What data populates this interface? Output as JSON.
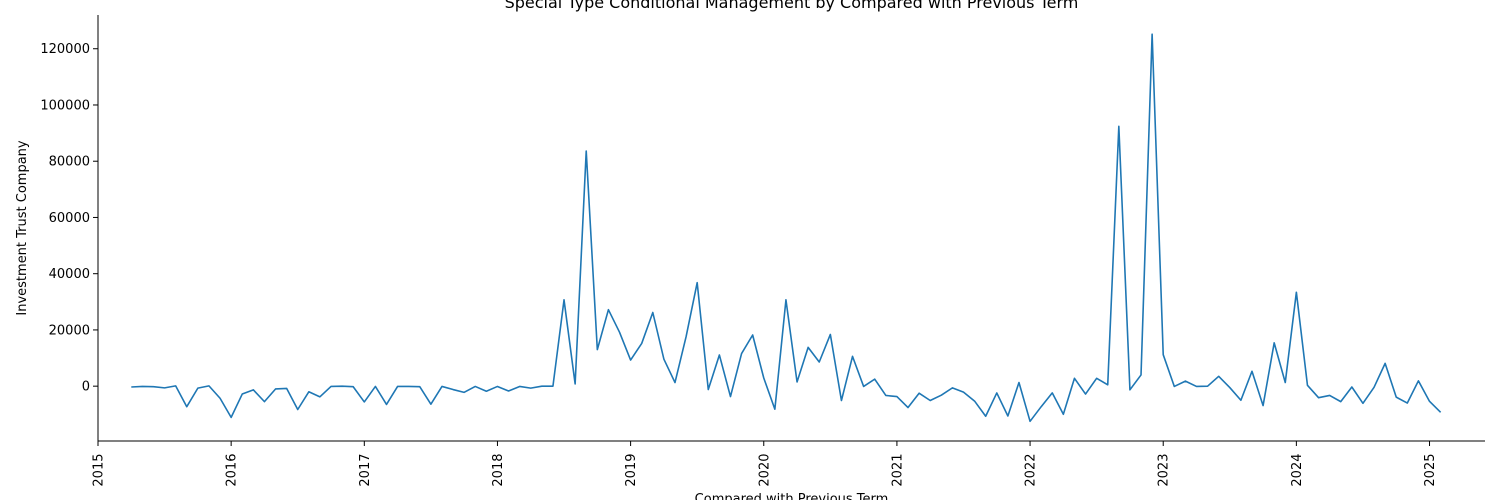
{
  "chart_data": {
    "type": "line",
    "title": "Special Type Conditional Management by Compared with Previous Term",
    "xlabel": "Compared with Previous Term",
    "ylabel": "Investment Trust Company",
    "xlim": [
      "2015-01-01",
      "2025-06-01"
    ],
    "ylim": [
      -19500,
      132000
    ],
    "x_ticks": [
      "2015",
      "2016",
      "2017",
      "2018",
      "2019",
      "2020",
      "2021",
      "2022",
      "2023",
      "2024",
      "2025"
    ],
    "y_ticks": [
      0,
      20000,
      40000,
      60000,
      80000,
      100000,
      120000
    ],
    "grid": false,
    "color": "#1f77b4",
    "series": [
      {
        "x": [
          "2015-04",
          "2015-05",
          "2015-06",
          "2015-07",
          "2015-08",
          "2015-09",
          "2015-10",
          "2015-11",
          "2015-12",
          "2016-01",
          "2016-02",
          "2016-03",
          "2016-04",
          "2016-05",
          "2016-06",
          "2016-07",
          "2016-08",
          "2016-09",
          "2016-10",
          "2016-11",
          "2016-12",
          "2017-01",
          "2017-02",
          "2017-03",
          "2017-04",
          "2017-05",
          "2017-06",
          "2017-07",
          "2017-08",
          "2017-09",
          "2017-10",
          "2017-11",
          "2017-12",
          "2018-01",
          "2018-02",
          "2018-03",
          "2018-04",
          "2018-05",
          "2018-06",
          "2018-07",
          "2018-08",
          "2018-09",
          "2018-10",
          "2018-11",
          "2018-12",
          "2019-01",
          "2019-02",
          "2019-03",
          "2019-04",
          "2019-05",
          "2019-06",
          "2019-07",
          "2019-08",
          "2019-09",
          "2019-10",
          "2019-11",
          "2019-12",
          "2020-01",
          "2020-02",
          "2020-03",
          "2020-04",
          "2020-05",
          "2020-06",
          "2020-07",
          "2020-08",
          "2020-09",
          "2020-10",
          "2020-11",
          "2020-12",
          "2021-01",
          "2021-02",
          "2021-03",
          "2021-04",
          "2021-05",
          "2021-06",
          "2021-07",
          "2021-08",
          "2021-09",
          "2021-10",
          "2021-11",
          "2021-12",
          "2022-01",
          "2022-02",
          "2022-03",
          "2022-04",
          "2022-05",
          "2022-06",
          "2022-07",
          "2022-08",
          "2022-09",
          "2022-10",
          "2022-11",
          "2022-12",
          "2023-01",
          "2023-02",
          "2023-03",
          "2023-04",
          "2023-05",
          "2023-06",
          "2023-07",
          "2023-08",
          "2023-09",
          "2023-10",
          "2023-11",
          "2023-12",
          "2024-01",
          "2024-02",
          "2024-03",
          "2024-04",
          "2024-05",
          "2024-06",
          "2024-07",
          "2024-08",
          "2024-09",
          "2024-10",
          "2024-11",
          "2024-12",
          "2025-01",
          "2025-02"
        ],
        "values": [
          -300,
          -100,
          -200,
          -600,
          100,
          -7300,
          -700,
          100,
          -4300,
          -11100,
          -2800,
          -1300,
          -5500,
          -1000,
          -800,
          -8300,
          -2000,
          -3800,
          -100,
          0,
          -200,
          -5600,
          -100,
          -6500,
          -100,
          -100,
          -200,
          -6400,
          -100,
          -1200,
          -2200,
          -100,
          -1800,
          -100,
          -1700,
          -100,
          -700,
          0,
          0,
          30700,
          800,
          83600,
          13000,
          27200,
          19200,
          9300,
          15200,
          26200,
          9600,
          1300,
          17600,
          36800,
          -1200,
          11100,
          -3700,
          11600,
          18200,
          2900,
          -8200,
          30700,
          1500,
          13800,
          8600,
          18400,
          -5100,
          10600,
          -100,
          2500,
          -3300,
          -3700,
          -7600,
          -2500,
          -5100,
          -3200,
          -600,
          -2100,
          -5300,
          -10700,
          -2400,
          -10600,
          1300,
          -12500,
          -7300,
          -2400,
          -10000,
          2800,
          -2800,
          2800,
          500,
          92400,
          -1300,
          4000,
          125200,
          11200,
          -100,
          1800,
          -100,
          0,
          3500,
          -500,
          -5000,
          5300,
          -6900,
          15400,
          1300,
          33400,
          300,
          -4100,
          -3300,
          -5500,
          -300,
          -6100,
          -400,
          8100,
          -3900,
          -6000,
          1900,
          -5400,
          -9300
        ]
      }
    ]
  }
}
